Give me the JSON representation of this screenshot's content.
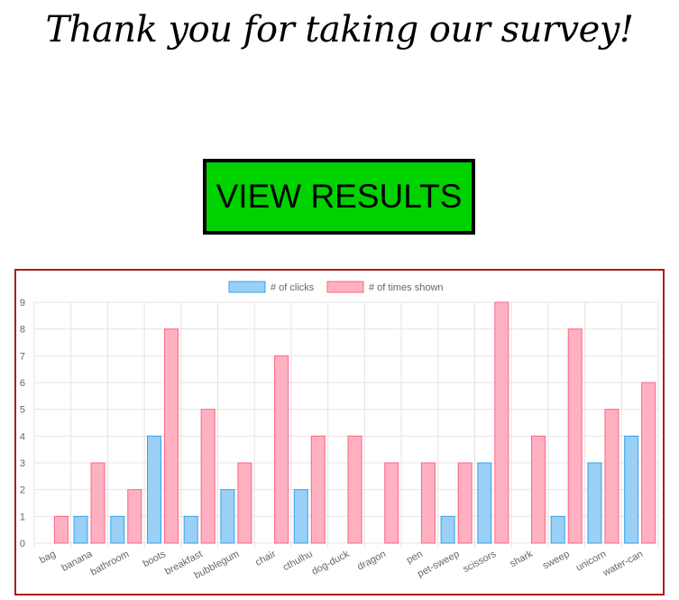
{
  "page": {
    "heading": "Thank you for taking our survey!",
    "view_results_label": "VIEW RESULTS"
  },
  "colors": {
    "button_bg": "#00d200",
    "chart_border": "#b01a12",
    "clicks_fill": "#9ad0f5",
    "clicks_stroke": "#36a2eb",
    "shown_fill": "#ffb1c1",
    "shown_stroke": "#ff6384"
  },
  "chart_data": {
    "type": "bar",
    "categories": [
      "bag",
      "banana",
      "bathroom",
      "boots",
      "breakfast",
      "bubblegum",
      "chair",
      "cthulhu",
      "dog-duck",
      "dragon",
      "pen",
      "pet-sweep",
      "scissors",
      "shark",
      "sweep",
      "unicorn",
      "water-can"
    ],
    "series": [
      {
        "name": "# of clicks",
        "values": [
          0,
          1,
          1,
          4,
          1,
          2,
          0,
          2,
          0,
          0,
          0,
          1,
          3,
          0,
          1,
          3,
          4
        ]
      },
      {
        "name": "# of times shown",
        "values": [
          1,
          3,
          2,
          8,
          5,
          3,
          7,
          4,
          4,
          3,
          3,
          3,
          9,
          4,
          8,
          5,
          6
        ]
      }
    ],
    "ylim": [
      0,
      9
    ],
    "yticks": [
      "0",
      "1",
      "2",
      "3",
      "4",
      "5",
      "6",
      "7",
      "8",
      "9"
    ],
    "grid": true,
    "legend_position": "top"
  }
}
